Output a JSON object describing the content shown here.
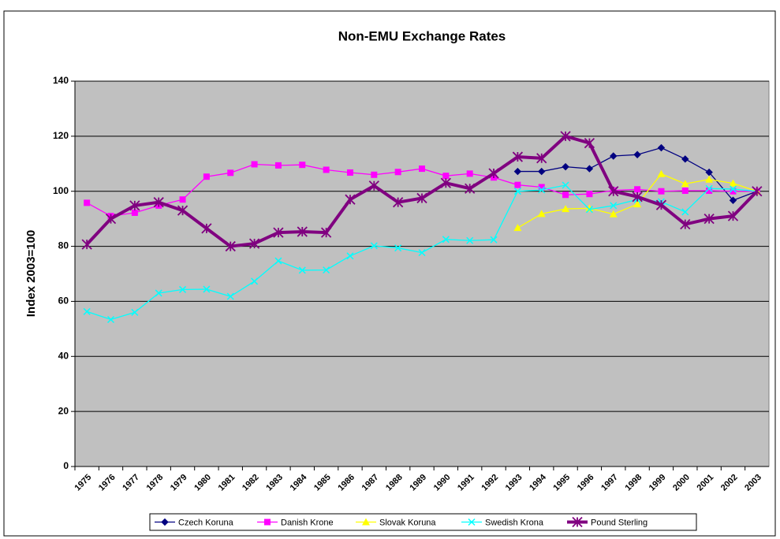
{
  "chart_data": {
    "type": "line",
    "title": "Non-EMU Exchange Rates",
    "y_label": "Index 2003=100",
    "categories": [
      "1975",
      "1976",
      "1977",
      "1978",
      "1979",
      "1980",
      "1981",
      "1982",
      "1983",
      "1984",
      "1985",
      "1986",
      "1987",
      "1988",
      "1989",
      "1990",
      "1991",
      "1992",
      "1993",
      "1994",
      "1995",
      "1996",
      "1997",
      "1998",
      "1999",
      "2000",
      "2001",
      "2002",
      "2003"
    ],
    "ylim": [
      0,
      140
    ],
    "yticks": [
      0,
      20,
      40,
      60,
      80,
      100,
      120,
      140
    ],
    "grid": true,
    "legend": "bottom",
    "series": [
      {
        "name": "Czech Koruna",
        "color": "#000080",
        "marker": "diamond",
        "values": [
          null,
          null,
          null,
          null,
          null,
          null,
          null,
          null,
          null,
          null,
          null,
          null,
          null,
          null,
          null,
          null,
          null,
          null,
          107.2,
          107.2,
          108.9,
          108.2,
          112.8,
          113.3,
          115.8,
          111.7,
          106.9,
          96.7,
          100
        ]
      },
      {
        "name": "Danish Krone",
        "color": "#ff00ff",
        "marker": "square",
        "values": [
          95.8,
          91,
          92.2,
          94.8,
          97,
          105.3,
          106.7,
          109.8,
          109.4,
          109.6,
          107.8,
          106.8,
          106,
          107,
          108.2,
          105.6,
          106.4,
          105,
          102.3,
          101.5,
          98.7,
          99,
          100.3,
          100.7,
          100,
          100.2,
          100.2,
          100,
          100
        ]
      },
      {
        "name": "Slovak Koruna",
        "color": "#ffff00",
        "marker": "triangle",
        "values": [
          null,
          null,
          null,
          null,
          null,
          null,
          null,
          null,
          null,
          null,
          null,
          null,
          null,
          null,
          null,
          null,
          null,
          null,
          86.7,
          91.8,
          93.6,
          93.8,
          91.7,
          95.3,
          106.3,
          102.7,
          104.3,
          102.9,
          100
        ]
      },
      {
        "name": "Swedish Krona",
        "color": "#00ffff",
        "marker": "x",
        "values": [
          56.3,
          53.4,
          56,
          63,
          64.3,
          64.4,
          61.8,
          67.3,
          74.7,
          71.3,
          71.4,
          76.5,
          80.2,
          79.4,
          77.7,
          82.5,
          82.1,
          82.4,
          100,
          100.5,
          102.2,
          93.4,
          94.8,
          97,
          96.2,
          92.5,
          101,
          100.8,
          100
        ]
      },
      {
        "name": "Pound Sterling",
        "color": "#800080",
        "marker": "star",
        "width": 4,
        "values": [
          80.7,
          90,
          94.8,
          96,
          93,
          86.5,
          80,
          81,
          85,
          85.3,
          85,
          97,
          102,
          96,
          97.5,
          103,
          101,
          106.5,
          112.5,
          112,
          120,
          117.5,
          100,
          98,
          95,
          88,
          90,
          91,
          100
        ]
      }
    ]
  }
}
